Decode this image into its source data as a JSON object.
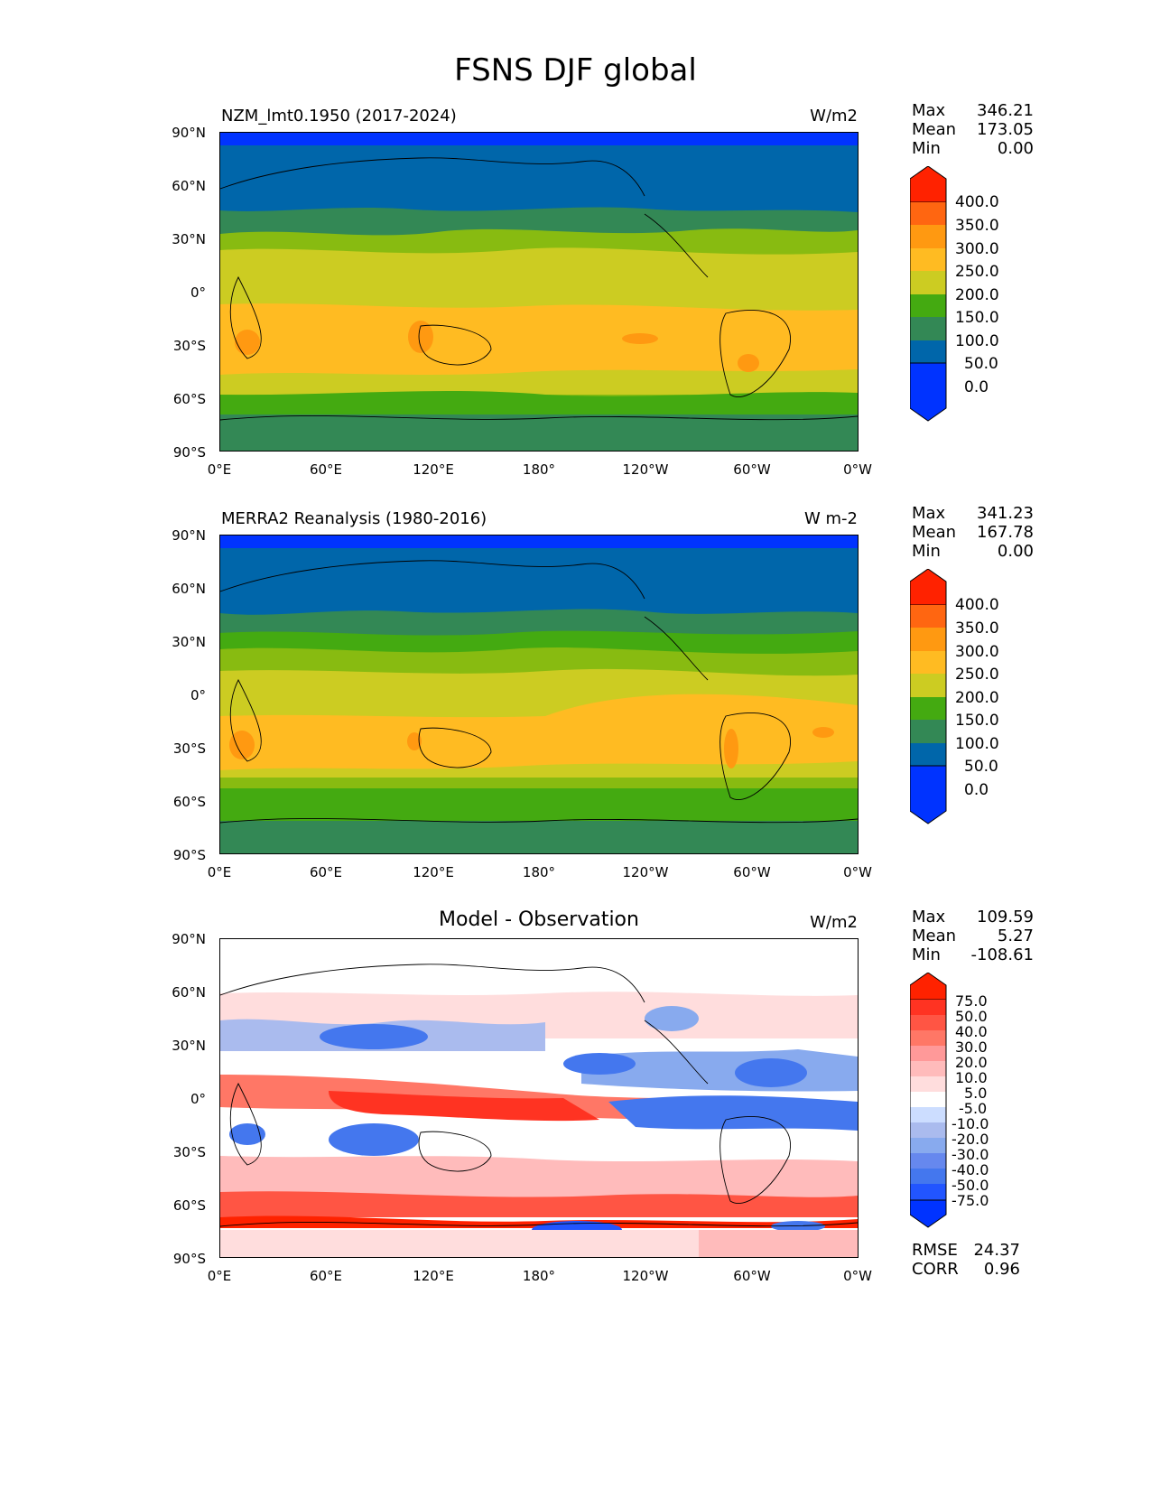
{
  "figure": {
    "title": "FSNS DJF global"
  },
  "panels": [
    {
      "title_left": "NZM_lmt0.1950 (2017-2024)",
      "title_right": "W/m2",
      "stats": [
        {
          "label": "Max",
          "value": "346.21"
        },
        {
          "label": "Mean",
          "value": "173.05"
        },
        {
          "label": "Min",
          "value": "0.00"
        }
      ],
      "colorbar_labels": [
        "400.0",
        "350.0",
        "300.0",
        "250.0",
        "200.0",
        "150.0",
        "100.0",
        "50.0",
        "0.0"
      ]
    },
    {
      "title_left": "MERRA2 Reanalysis (1980-2016)",
      "title_right": "W m-2",
      "stats": [
        {
          "label": "Max",
          "value": "341.23"
        },
        {
          "label": "Mean",
          "value": "167.78"
        },
        {
          "label": "Min",
          "value": "0.00"
        }
      ],
      "colorbar_labels": [
        "400.0",
        "350.0",
        "300.0",
        "250.0",
        "200.0",
        "150.0",
        "100.0",
        "50.0",
        "0.0"
      ]
    },
    {
      "title_center": "Model - Observation",
      "title_right": "W/m2",
      "stats": [
        {
          "label": "Max",
          "value": "109.59"
        },
        {
          "label": "Mean",
          "value": "5.27"
        },
        {
          "label": "Min",
          "value": "-108.61"
        }
      ],
      "colorbar_labels": [
        "75.0",
        "50.0",
        "40.0",
        "30.0",
        "20.0",
        "10.0",
        "5.0",
        "-5.0",
        "-10.0",
        "-20.0",
        "-30.0",
        "-40.0",
        "-50.0",
        "-75.0"
      ],
      "metrics": [
        {
          "label": "RMSE",
          "value": "24.37"
        },
        {
          "label": "CORR",
          "value": "0.96"
        }
      ]
    }
  ],
  "axes": {
    "y_ticks": [
      "90°N",
      "60°N",
      "30°N",
      "0°",
      "30°S",
      "60°S",
      "90°S"
    ],
    "x_ticks": [
      "0°E",
      "60°E",
      "120°E",
      "180°",
      "120°W",
      "60°W",
      "0°W"
    ]
  },
  "colors": {
    "abs_scale": [
      "#0033ff",
      "#0066aa",
      "#338855",
      "#44aa11",
      "#88bb11",
      "#cccc22",
      "#ffbb22",
      "#ff9911",
      "#ff6611",
      "#ff2200"
    ],
    "diff_scale": [
      "#0033ff",
      "#2255ff",
      "#4477ee",
      "#6688ee",
      "#88aaee",
      "#aabbee",
      "#ccddff",
      "#ffffff",
      "#ffdddd",
      "#ffbbbb",
      "#ff9999",
      "#ff7766",
      "#ff5544",
      "#ff3322",
      "#ff2200"
    ]
  }
}
